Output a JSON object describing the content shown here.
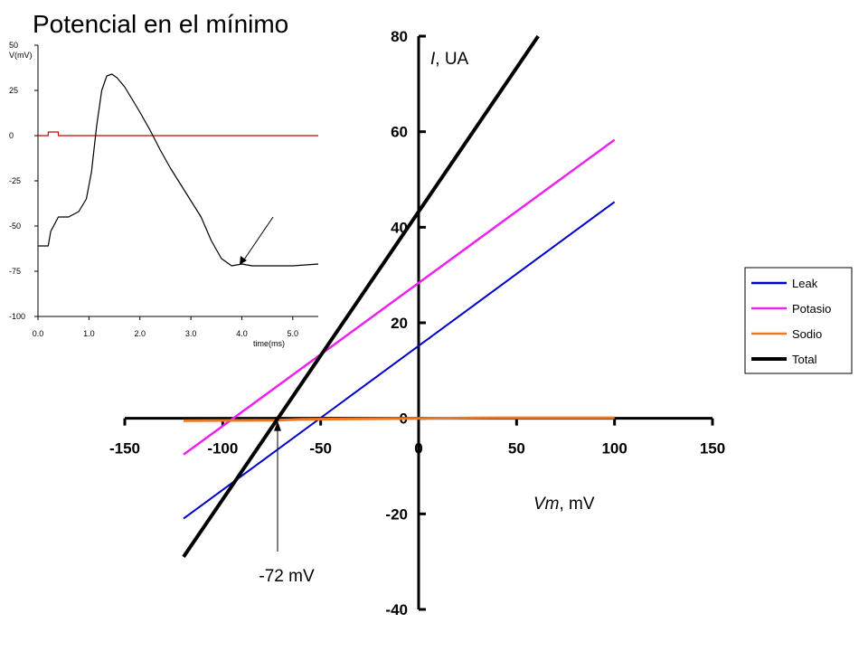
{
  "title": "Potencial en el mínimo",
  "chart_data": [
    {
      "type": "line",
      "name": "main-iv-plot",
      "xlabel_italic": "Vm",
      "xlabel_rest": ", mV",
      "ylabel_italic": "I",
      "ylabel_rest": ", UA",
      "xlim": [
        -150,
        150
      ],
      "ylim": [
        -40,
        80
      ],
      "x_ticks": [
        -150,
        -100,
        -50,
        0,
        50,
        100,
        150
      ],
      "y_ticks": [
        -40,
        -20,
        0,
        20,
        40,
        60,
        80
      ],
      "grid": false,
      "legend_position": "right",
      "series": [
        {
          "name": "Leak",
          "color": "#0000cc",
          "x": [
            -120,
            100
          ],
          "y": [
            -21,
            45.3
          ]
        },
        {
          "name": "Potasio",
          "color": "#ee22ee",
          "x": [
            -120,
            100
          ],
          "y": [
            -7.6,
            58.3
          ]
        },
        {
          "name": "Sodio",
          "color": "#ee7722",
          "x": [
            -120,
            -72,
            -60,
            0,
            40,
            100
          ],
          "y": [
            -0.5,
            -0.4,
            -0.2,
            0,
            0.1,
            0.1
          ]
        },
        {
          "name": "Total",
          "color": "#000000",
          "x": [
            -120,
            61
          ],
          "y": [
            -29,
            80
          ]
        }
      ],
      "annotation": {
        "text": "-72 mV",
        "x": -72
      }
    },
    {
      "type": "line",
      "name": "inset-action-potential",
      "ylabel": "V(mV)",
      "xlabel": "time(ms)",
      "xlim": [
        0,
        5.5
      ],
      "ylim": [
        -100,
        50
      ],
      "x_ticks": [
        "0.0",
        "1.0",
        "2.0",
        "3.0",
        "4.0",
        "5.0"
      ],
      "y_ticks": [
        "50",
        "25",
        "0",
        "-25",
        "-50",
        "-75",
        "-100"
      ],
      "series": [
        {
          "name": "voltage",
          "color": "#000000",
          "x": [
            0,
            0.2,
            0.25,
            0.4,
            0.45,
            0.6,
            0.8,
            0.95,
            1.05,
            1.15,
            1.25,
            1.35,
            1.45,
            1.55,
            1.7,
            1.85,
            2.0,
            2.2,
            2.4,
            2.6,
            2.8,
            3.0,
            3.2,
            3.4,
            3.6,
            3.8,
            4.0,
            4.2,
            4.5,
            5.0,
            5.5
          ],
          "y": [
            -61,
            -61,
            -53,
            -45,
            -45,
            -45,
            -42,
            -35,
            -20,
            5,
            25,
            33,
            34,
            32,
            27,
            20,
            13,
            3,
            -8,
            -18,
            -27,
            -36,
            -45,
            -58,
            -68,
            -72,
            -71,
            -72,
            -72,
            -72,
            -71
          ]
        },
        {
          "name": "stimulus",
          "color": "#cc0000",
          "x": [
            0,
            0.2,
            0.2,
            0.4,
            0.4,
            5.5
          ],
          "y": [
            0,
            0,
            2,
            2,
            0,
            0
          ]
        }
      ]
    }
  ]
}
